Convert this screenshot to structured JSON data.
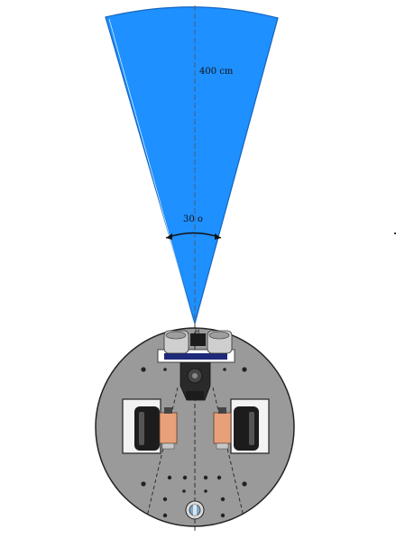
{
  "diagram": {
    "range_label": "400  cm",
    "angle_label": "30 o",
    "colors": {
      "beam": "#1E90FF",
      "beam_edge": "#1565c0",
      "chassis": "#9a9a9a",
      "motor": "#e8a07a",
      "wheel": "#1c1c1c"
    }
  }
}
